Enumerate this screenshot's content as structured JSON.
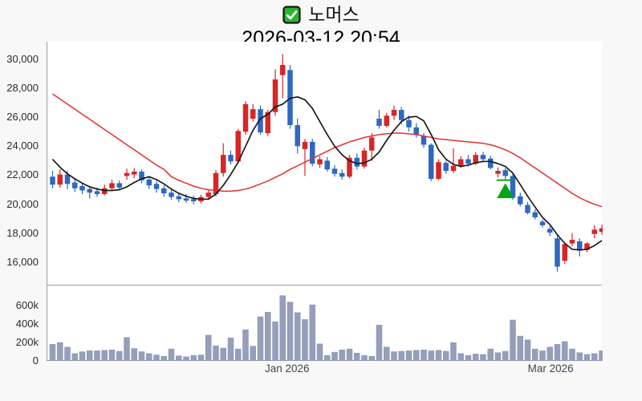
{
  "header": {
    "check_icon": "check-icon",
    "title": "노머스",
    "subtitle": "2026-03-12 20:54"
  },
  "chart_data": {
    "type": "candlestick+volume",
    "title": "노머스",
    "subtitle": "2026-03-12 20:54",
    "legend_position": "none",
    "grid": false,
    "price_axis": {
      "ylim": [
        14400,
        31200
      ],
      "ticks": [
        {
          "label": "30,000",
          "value": 30000
        },
        {
          "label": "28,000",
          "value": 28000
        },
        {
          "label": "26,000",
          "value": 26000
        },
        {
          "label": "24,000",
          "value": 24000
        },
        {
          "label": "22,000",
          "value": 22000
        },
        {
          "label": "20,000",
          "value": 20000
        },
        {
          "label": "18,000",
          "value": 18000
        },
        {
          "label": "16,000",
          "value": 16000
        }
      ]
    },
    "volume_axis": {
      "ylim": [
        0,
        820000
      ],
      "ticks": [
        {
          "label": "600k",
          "value": 600000
        },
        {
          "label": "400k",
          "value": 400000
        },
        {
          "label": "200k",
          "value": 200000
        },
        {
          "label": "0",
          "value": 0
        }
      ]
    },
    "x_axis": {
      "labels": [
        {
          "text": "Jan 2026",
          "index": 32.7
        },
        {
          "text": "Mar 2026",
          "index": 68.2
        }
      ]
    },
    "colors": {
      "up_candle": "#d62626",
      "down_candle": "#2e68c0",
      "ma_short": "#1a1a1a",
      "ma_long": "#e33030",
      "volume_bar": "#959fba",
      "volume_bar_edge": "#8b95b1",
      "marker_green": "#0aa316",
      "check_green": "#28b52e",
      "panel_bg": "#ffffff",
      "page_bg": "#f8f8f8"
    },
    "candles_note": "each candle = [open, high, low, close, volume]",
    "candles": [
      [
        21900,
        22300,
        21100,
        21350,
        180000
      ],
      [
        21350,
        22400,
        21150,
        22050,
        200000
      ],
      [
        22050,
        22300,
        21050,
        21400,
        150000
      ],
      [
        21500,
        21700,
        20850,
        21100,
        80000
      ],
      [
        21250,
        21450,
        20700,
        20950,
        100000
      ],
      [
        21050,
        21250,
        20400,
        20800,
        110000
      ],
      [
        20900,
        21150,
        20500,
        20700,
        110000
      ],
      [
        20700,
        21350,
        20600,
        21100,
        115000
      ],
      [
        21100,
        21700,
        20950,
        21450,
        120000
      ],
      [
        21450,
        21650,
        20950,
        21150,
        105000
      ],
      [
        21950,
        22450,
        21700,
        22150,
        255000
      ],
      [
        22050,
        22500,
        21800,
        22250,
        135000
      ],
      [
        22250,
        22400,
        21450,
        21650,
        100000
      ],
      [
        21700,
        21900,
        21050,
        21300,
        80000
      ],
      [
        21400,
        21600,
        20800,
        21050,
        65000
      ],
      [
        21100,
        21300,
        20500,
        20750,
        50000
      ],
      [
        20800,
        21000,
        20300,
        20500,
        130000
      ],
      [
        20550,
        20800,
        20150,
        20350,
        55000
      ],
      [
        20400,
        20700,
        20100,
        20250,
        45000
      ],
      [
        20350,
        20600,
        20000,
        20200,
        60000
      ],
      [
        20200,
        20650,
        20050,
        20500,
        65000
      ],
      [
        20500,
        20950,
        20300,
        20800,
        280000
      ],
      [
        20700,
        22350,
        20550,
        22150,
        165000
      ],
      [
        22150,
        24200,
        21900,
        23400,
        140000
      ],
      [
        23400,
        23700,
        22750,
        22950,
        250000
      ],
      [
        22950,
        25200,
        22800,
        25050,
        130000
      ],
      [
        25000,
        27100,
        24800,
        26900,
        340000
      ],
      [
        25900,
        26900,
        25700,
        26550,
        160000
      ],
      [
        26550,
        26800,
        24800,
        24950,
        480000
      ],
      [
        24900,
        26500,
        24700,
        26350,
        530000
      ],
      [
        26350,
        29300,
        26100,
        28600,
        425000
      ],
      [
        28900,
        30350,
        27300,
        29600,
        710000
      ],
      [
        29250,
        29600,
        25200,
        25450,
        640000
      ],
      [
        25450,
        25900,
        23500,
        24000,
        525000
      ],
      [
        23800,
        24500,
        21950,
        24300,
        450000
      ],
      [
        24300,
        24500,
        22600,
        22800,
        610000
      ],
      [
        22750,
        23300,
        22500,
        23100,
        185000
      ],
      [
        23000,
        23250,
        22250,
        22400,
        60000
      ],
      [
        22450,
        22700,
        21900,
        22100,
        95000
      ],
      [
        22150,
        22400,
        21700,
        21900,
        120000
      ],
      [
        21900,
        23400,
        21800,
        23200,
        130000
      ],
      [
        23200,
        23500,
        22400,
        22600,
        85000
      ],
      [
        22600,
        23900,
        22450,
        23700,
        60000
      ],
      [
        23700,
        24900,
        23000,
        24600,
        50000
      ],
      [
        25900,
        26500,
        25200,
        25400,
        390000
      ],
      [
        25400,
        26300,
        25300,
        26100,
        150000
      ],
      [
        26100,
        26800,
        25800,
        26500,
        100000
      ],
      [
        26500,
        26700,
        25500,
        25800,
        105000
      ],
      [
        25800,
        26100,
        25000,
        25300,
        110000
      ],
      [
        25300,
        25600,
        24600,
        24800,
        115000
      ],
      [
        24700,
        24900,
        23900,
        24100,
        120000
      ],
      [
        24100,
        24200,
        21600,
        21750,
        110000
      ],
      [
        21750,
        23100,
        21650,
        22900,
        115000
      ],
      [
        22850,
        23000,
        22100,
        22300,
        105000
      ],
      [
        22300,
        23850,
        22150,
        22650,
        200000
      ],
      [
        22650,
        23300,
        22500,
        23100,
        80000
      ],
      [
        23100,
        23400,
        22600,
        22800,
        60000
      ],
      [
        22800,
        23600,
        22700,
        23400,
        75000
      ],
      [
        23400,
        23600,
        22900,
        23100,
        70000
      ],
      [
        23150,
        23350,
        22400,
        22500,
        130000
      ],
      [
        22100,
        22550,
        21850,
        22300,
        90000
      ],
      [
        22350,
        22500,
        21700,
        21950,
        105000
      ],
      [
        21950,
        22100,
        20300,
        20450,
        445000
      ],
      [
        20550,
        20800,
        19850,
        20000,
        270000
      ],
      [
        19950,
        20150,
        19300,
        19400,
        230000
      ],
      [
        19450,
        19650,
        18950,
        19100,
        130000
      ],
      [
        18800,
        18950,
        18400,
        18550,
        110000
      ],
      [
        18300,
        18500,
        17800,
        18050,
        150000
      ],
      [
        17650,
        17900,
        15350,
        15700,
        180000
      ],
      [
        16100,
        17400,
        15900,
        17250,
        210000
      ],
      [
        17300,
        18000,
        17100,
        17550,
        130000
      ],
      [
        17450,
        17650,
        16400,
        16800,
        90000
      ],
      [
        16850,
        17400,
        16700,
        17300,
        70000
      ],
      [
        17950,
        18550,
        17650,
        18250,
        80000
      ],
      [
        18100,
        18600,
        17900,
        18350,
        110000
      ]
    ],
    "ma_short": [
      23100,
      22550,
      22100,
      21750,
      21450,
      21200,
      21050,
      20950,
      20950,
      21000,
      21200,
      21500,
      21750,
      21900,
      21700,
      21400,
      21050,
      20750,
      20550,
      20400,
      20350,
      20350,
      20700,
      21300,
      22050,
      22900,
      24000,
      25100,
      25900,
      26200,
      26700,
      26900,
      27300,
      27400,
      27200,
      26600,
      25700,
      24800,
      24000,
      23400,
      23000,
      22800,
      22850,
      23100,
      23600,
      24400,
      25100,
      25700,
      26000,
      26050,
      25750,
      24800,
      23750,
      23100,
      22750,
      22600,
      22700,
      22850,
      22950,
      22950,
      22800,
      22600,
      22150,
      21350,
      20550,
      19800,
      19100,
      18600,
      17900,
      17300,
      16900,
      16850,
      16900,
      17150,
      17500
    ],
    "ma_long": [
      27600,
      27250,
      26900,
      26550,
      26200,
      25850,
      25500,
      25150,
      24800,
      24450,
      24100,
      23750,
      23400,
      23050,
      22700,
      22400,
      21900,
      21650,
      21450,
      21250,
      21100,
      21000,
      20950,
      20900,
      20900,
      20950,
      21050,
      21200,
      21400,
      21600,
      21850,
      22100,
      22400,
      22650,
      22900,
      23150,
      23400,
      23650,
      23900,
      24100,
      24300,
      24450,
      24600,
      24700,
      24800,
      24850,
      24900,
      24900,
      24850,
      24800,
      24700,
      24600,
      24500,
      24450,
      24400,
      24350,
      24300,
      24250,
      24200,
      24100,
      23950,
      23750,
      23500,
      23200,
      22850,
      22500,
      22150,
      21800,
      21450,
      21100,
      20750,
      20450,
      20200,
      20000,
      19830
    ],
    "marker": {
      "type": "triangle-up",
      "index": 62,
      "line_value": 21660,
      "apex_value": 21450,
      "base_value": 20420
    }
  }
}
